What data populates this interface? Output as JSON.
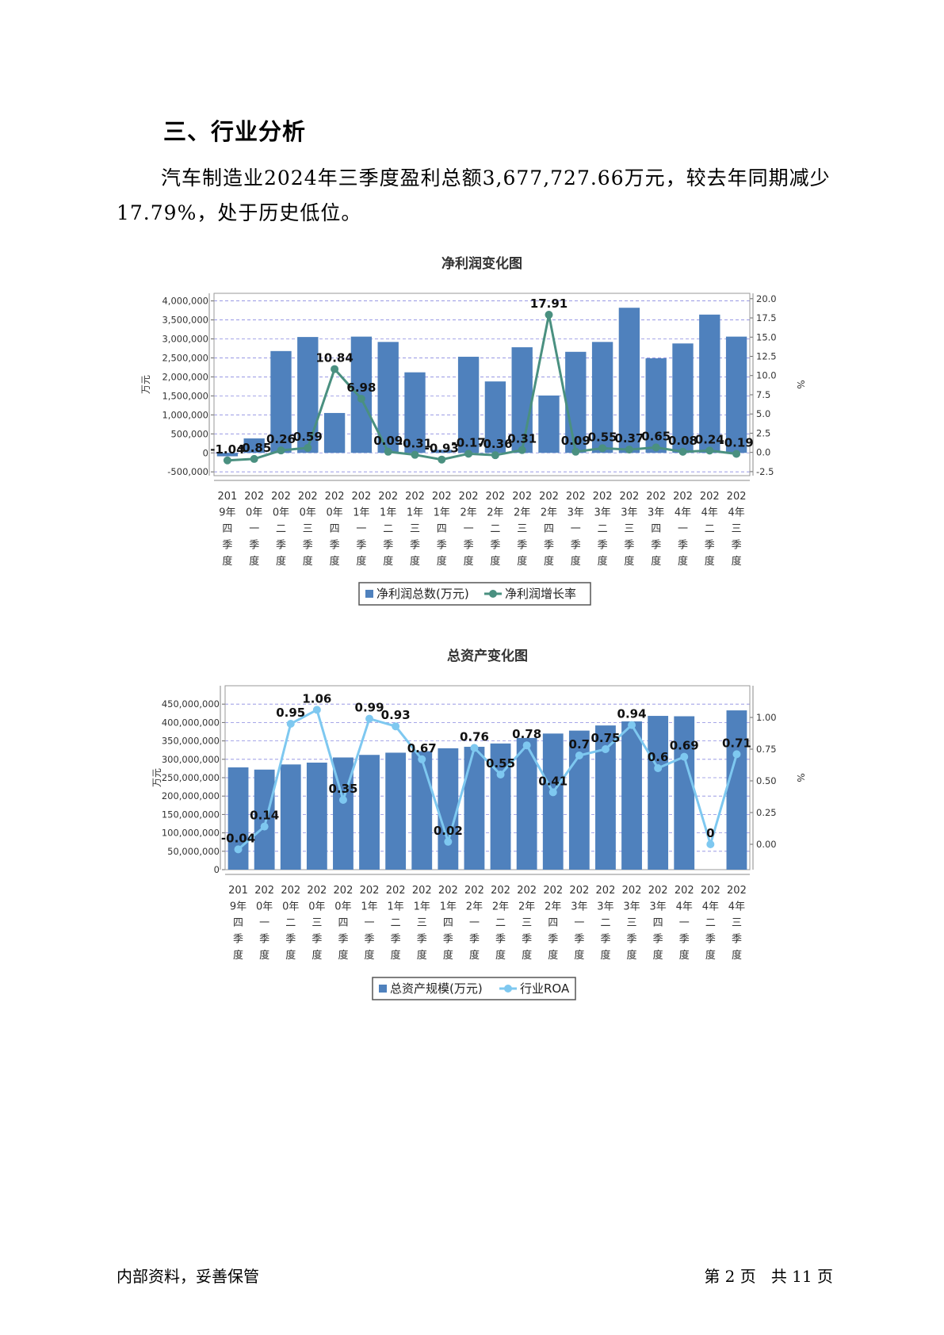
{
  "section": {
    "heading": "三、行业分析",
    "paragraph": "汽车制造业2024年三季度盈利总额3,677,727.66万元，较去年同期减少17.79%，处于历史低位。"
  },
  "footer": {
    "left": "内部资料，妥善保管",
    "right": "第 2 页   共 11 页"
  },
  "chart_data": [
    {
      "type": "bar",
      "title": "净利润变化图",
      "ylabel": "万元",
      "y2label": "%",
      "ylim": [
        -600000,
        4200000
      ],
      "y2lim": [
        -3.025,
        20.7
      ],
      "yticks": [
        "-500,000",
        "0",
        "500,000",
        "1,000,000",
        "1,500,000",
        "2,000,000",
        "2,500,000",
        "3,000,000",
        "3,500,000",
        "4,000,000"
      ],
      "y2ticks": [
        "-2.5",
        "0.0",
        "2.5",
        "5.0",
        "7.5",
        "10.0",
        "12.5",
        "15.0",
        "17.5",
        "20.0"
      ],
      "categories": [
        "2019年四季度",
        "2020年一季度",
        "2020年二季度",
        "2020年三季度",
        "2020年四季度",
        "2021年一季度",
        "2021年二季度",
        "2021年三季度",
        "2021年四季度",
        "2022年一季度",
        "2022年二季度",
        "2022年三季度",
        "2022年四季度",
        "2023年一季度",
        "2023年二季度",
        "2023年三季度",
        "2023年四季度",
        "2024年一季度",
        "2024年二季度",
        "2024年三季度"
      ],
      "series": [
        {
          "name": "净利润总数(万元)",
          "kind": "bar",
          "color": "#4f81bd",
          "values": [
            -90000,
            380000,
            2680000,
            3050000,
            1050000,
            3060000,
            2920000,
            2120000,
            80000,
            2530000,
            1880000,
            2780000,
            1510000,
            2660000,
            2920000,
            3820000,
            2490000,
            2880000,
            3640000,
            3060000
          ]
        },
        {
          "name": "净利润增长率",
          "kind": "line",
          "color": "#4a9080",
          "values": [
            -1.04,
            -0.85,
            0.26,
            0.59,
            10.84,
            6.98,
            0.09,
            -0.31,
            -0.93,
            -0.17,
            -0.36,
            0.31,
            17.91,
            0.09,
            0.55,
            0.37,
            0.65,
            0.08,
            0.24,
            -0.19
          ],
          "labels": [
            "-1.04",
            "-0.85",
            "0.26",
            "0.59",
            "10.84",
            "6.98",
            "0.09",
            "-0.31",
            "-0.93",
            "-0.17",
            "-0.36",
            "0.31",
            "17.91",
            "0.09",
            "0.55",
            "0.37",
            "0.65",
            "0.08",
            "0.24",
            "-0.19"
          ]
        }
      ],
      "grid": true,
      "legend": "bottom"
    },
    {
      "type": "bar",
      "title": "总资产变化图",
      "ylabel": "万元",
      "y2label": "%",
      "ylim": [
        0,
        500000000
      ],
      "y2lim": [
        -0.2,
        1.25
      ],
      "yticks": [
        "0",
        "50,000,000",
        "100,000,000",
        "150,000,000",
        "200,000,000",
        "250,000,000",
        "300,000,000",
        "350,000,000",
        "400,000,000",
        "450,000,000"
      ],
      "y2ticks": [
        "0.00",
        "0.25",
        "0.50",
        "0.75",
        "1.00"
      ],
      "categories": [
        "2019年四季度",
        "2020年一季度",
        "2020年二季度",
        "2020年三季度",
        "2020年四季度",
        "2021年一季度",
        "2021年二季度",
        "2021年三季度",
        "2021年四季度",
        "2022年一季度",
        "2022年二季度",
        "2022年三季度",
        "2022年四季度",
        "2023年一季度",
        "2023年二季度",
        "2023年三季度",
        "2023年四季度",
        "2024年一季度",
        "2024年二季度",
        "2024年三季度"
      ],
      "series": [
        {
          "name": "总资产规模(万元)",
          "kind": "bar",
          "color": "#4f81bd",
          "values": [
            278000000,
            272000000,
            286000000,
            291000000,
            305000000,
            312000000,
            318000000,
            322000000,
            330000000,
            334000000,
            343000000,
            358000000,
            370000000,
            378000000,
            392000000,
            403000000,
            418000000,
            417000000,
            null,
            433000000
          ]
        },
        {
          "name": "行业ROA",
          "kind": "line",
          "color": "#7ec8f0",
          "values": [
            -0.04,
            0.14,
            0.95,
            1.06,
            0.35,
            0.99,
            0.93,
            0.67,
            0.02,
            0.76,
            0.55,
            0.78,
            0.41,
            0.7,
            0.75,
            0.94,
            0.6,
            0.69,
            0,
            0.71
          ],
          "labels": [
            "-0.04",
            "0.14",
            "0.95",
            "1.06",
            "0.35",
            "0.99",
            "0.93",
            "0.67",
            "0.02",
            "0.76",
            "0.55",
            "0.78",
            "0.41",
            "0.7",
            "0.75",
            "0.94",
            "0.6",
            "0.69",
            "0",
            "0.71"
          ]
        }
      ],
      "grid": true,
      "legend": "bottom"
    }
  ]
}
